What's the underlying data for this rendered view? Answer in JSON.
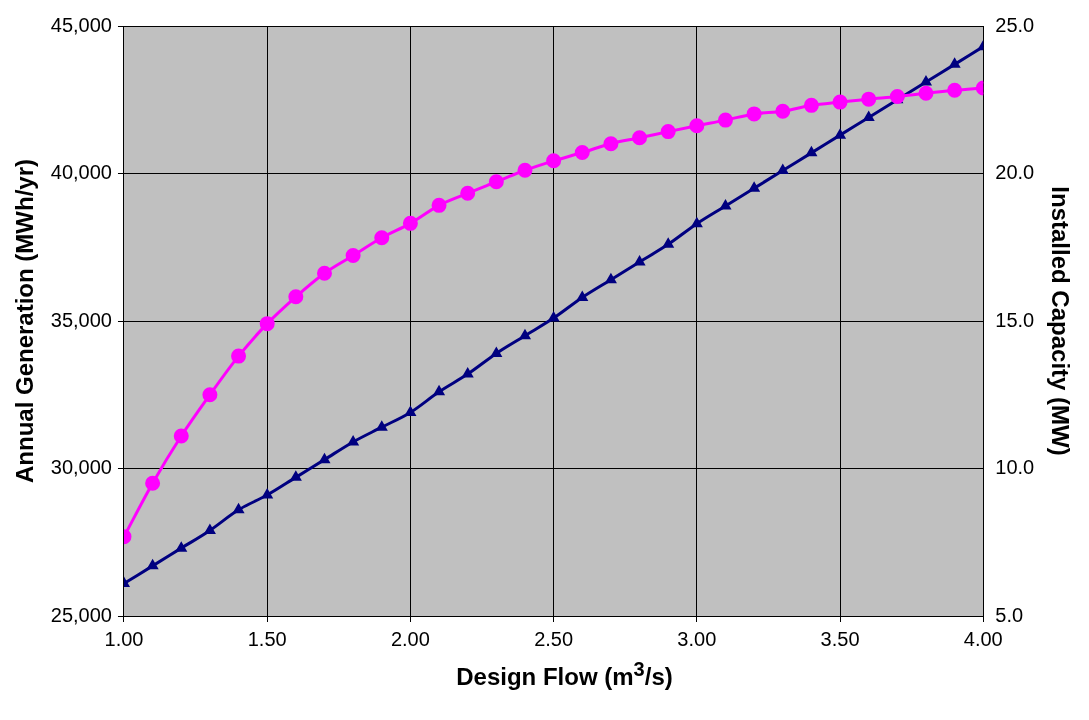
{
  "chart_data": {
    "type": "line",
    "xlabel": "Design Flow (m$^{3}$/s)",
    "ylabel": "Annual Generation (MWh/yr)",
    "y2label": "Installed Capacity (MW)",
    "x": [
      1.0,
      1.1,
      1.2,
      1.3,
      1.4,
      1.5,
      1.6,
      1.7,
      1.8,
      1.9,
      2.0,
      2.1,
      2.2,
      2.3,
      2.4,
      2.5,
      2.6,
      2.7,
      2.8,
      2.9,
      3.0,
      3.1,
      3.2,
      3.3,
      3.4,
      3.5,
      3.6,
      3.7,
      3.8,
      3.9,
      4.0
    ],
    "series": [
      {
        "color": "#ff00ff",
        "marker": "circle",
        "values": [
          27690,
          29500,
          31100,
          32500,
          33810,
          34910,
          35820,
          36620,
          37220,
          37820,
          38310,
          38920,
          39330,
          39720,
          40110,
          40430,
          40710,
          41010,
          41210,
          41420,
          41620,
          41810,
          42020,
          42110,
          42310,
          42420,
          42520,
          42610,
          42720,
          42820,
          42900
        ]
      },
      {
        "color": "#000080",
        "marker": "triangle",
        "axis": "y2",
        "values": [
          6.1,
          6.7,
          7.3,
          7.9,
          8.6,
          9.1,
          9.7,
          10.3,
          10.9,
          11.4,
          11.9,
          12.6,
          13.2,
          13.9,
          14.5,
          15.1,
          15.8,
          16.4,
          17.0,
          17.6,
          18.3,
          18.9,
          19.5,
          20.1,
          20.7,
          21.3,
          21.9,
          22.5,
          23.1,
          23.7,
          24.3
        ]
      }
    ],
    "xlim": [
      1,
      4
    ],
    "xticks": [
      {
        "value": 1,
        "label": "1.00"
      },
      {
        "value": 1.5,
        "label": "1.50"
      },
      {
        "value": 2,
        "label": "2.00"
      },
      {
        "value": 2.5,
        "label": "2.50"
      },
      {
        "value": 3,
        "label": "3.00"
      },
      {
        "value": 3.5,
        "label": "3.50"
      },
      {
        "value": 4,
        "label": "4.00"
      }
    ],
    "ylim": [
      25000,
      45000
    ],
    "yticks": [
      {
        "value": 25000,
        "label": "25,000"
      },
      {
        "value": 30000,
        "label": "30,000"
      },
      {
        "value": 35000,
        "label": "35,000"
      },
      {
        "value": 40000,
        "label": "40,000"
      },
      {
        "value": 45000,
        "label": "45,000"
      }
    ],
    "y2lim": [
      5,
      25
    ],
    "y2ticks": [
      {
        "value": 5,
        "label": "5.0"
      },
      {
        "value": 10,
        "label": "10.0"
      },
      {
        "value": 15,
        "label": "15.0"
      },
      {
        "value": 20,
        "label": "20.0"
      },
      {
        "value": 25,
        "label": "25.0"
      }
    ],
    "grid": true,
    "legend": false,
    "line_style": "solid"
  }
}
